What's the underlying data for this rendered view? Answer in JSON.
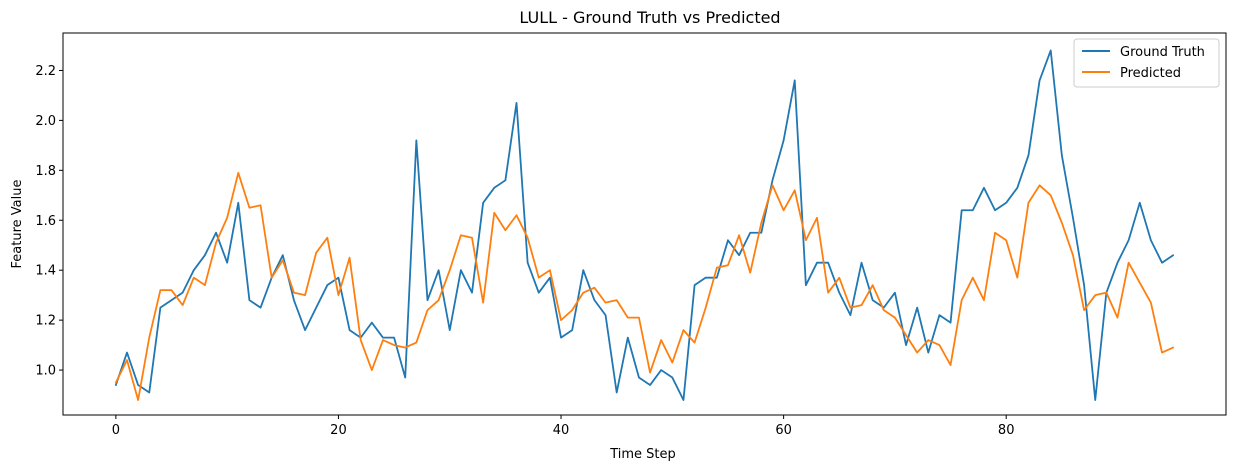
{
  "chart_data": {
    "type": "line",
    "title": "LULL - Ground Truth vs Predicted",
    "xlabel": "Time Step",
    "ylabel": "Feature Value",
    "xlim": [
      -4.75,
      99.75
    ],
    "ylim": [
      0.82,
      2.35
    ],
    "xticks": [
      0,
      20,
      40,
      60,
      80
    ],
    "yticks": [
      1.0,
      1.2,
      1.4,
      1.6,
      1.8,
      2.0,
      2.2
    ],
    "ytick_labels": [
      "1.0",
      "1.2",
      "1.4",
      "1.6",
      "1.8",
      "2.0",
      "2.2"
    ],
    "grid": false,
    "legend_position": "top-right",
    "x": [
      0,
      1,
      2,
      3,
      4,
      5,
      6,
      7,
      8,
      9,
      10,
      11,
      12,
      13,
      14,
      15,
      16,
      17,
      18,
      19,
      20,
      21,
      22,
      23,
      24,
      25,
      26,
      27,
      28,
      29,
      30,
      31,
      32,
      33,
      34,
      35,
      36,
      37,
      38,
      39,
      40,
      41,
      42,
      43,
      44,
      45,
      46,
      47,
      48,
      49,
      50,
      51,
      52,
      53,
      54,
      55,
      56,
      57,
      58,
      59,
      60,
      61,
      62,
      63,
      64,
      65,
      66,
      67,
      68,
      69,
      70,
      71,
      72,
      73,
      74,
      75,
      76,
      77,
      78,
      79,
      80,
      81,
      82,
      83,
      84,
      85,
      86,
      87,
      88,
      89,
      90,
      91,
      92,
      93,
      94,
      95
    ],
    "series": [
      {
        "name": "Ground Truth",
        "color": "#1f77b4",
        "values": [
          0.94,
          1.07,
          0.94,
          0.91,
          1.25,
          1.28,
          1.31,
          1.4,
          1.46,
          1.55,
          1.43,
          1.67,
          1.28,
          1.25,
          1.37,
          1.46,
          1.28,
          1.16,
          1.25,
          1.34,
          1.37,
          1.16,
          1.13,
          1.19,
          1.13,
          1.13,
          0.97,
          1.92,
          1.28,
          1.4,
          1.16,
          1.4,
          1.31,
          1.67,
          1.73,
          1.76,
          2.07,
          1.43,
          1.31,
          1.37,
          1.13,
          1.16,
          1.4,
          1.28,
          1.22,
          0.91,
          1.13,
          0.97,
          0.94,
          1.0,
          0.97,
          0.88,
          1.34,
          1.37,
          1.37,
          1.52,
          1.46,
          1.55,
          1.55,
          1.76,
          1.92,
          2.16,
          1.34,
          1.43,
          1.43,
          1.31,
          1.22,
          1.43,
          1.28,
          1.25,
          1.31,
          1.1,
          1.25,
          1.07,
          1.22,
          1.19,
          1.64,
          1.64,
          1.73,
          1.64,
          1.67,
          1.73,
          1.86,
          2.16,
          2.28,
          1.86,
          1.61,
          1.34,
          0.88,
          1.31,
          1.43,
          1.52,
          1.67,
          1.52,
          1.43,
          1.46
        ]
      },
      {
        "name": "Predicted",
        "color": "#ff7f0e",
        "values": [
          0.95,
          1.04,
          0.88,
          1.13,
          1.32,
          1.32,
          1.26,
          1.37,
          1.34,
          1.51,
          1.61,
          1.79,
          1.65,
          1.66,
          1.37,
          1.44,
          1.31,
          1.3,
          1.47,
          1.53,
          1.3,
          1.45,
          1.12,
          1.0,
          1.12,
          1.1,
          1.09,
          1.11,
          1.24,
          1.28,
          1.4,
          1.54,
          1.53,
          1.27,
          1.63,
          1.56,
          1.62,
          1.53,
          1.37,
          1.4,
          1.2,
          1.24,
          1.31,
          1.33,
          1.27,
          1.28,
          1.21,
          1.21,
          0.99,
          1.12,
          1.03,
          1.16,
          1.11,
          1.25,
          1.41,
          1.42,
          1.54,
          1.39,
          1.59,
          1.74,
          1.64,
          1.72,
          1.52,
          1.61,
          1.31,
          1.37,
          1.25,
          1.26,
          1.34,
          1.24,
          1.21,
          1.14,
          1.07,
          1.12,
          1.1,
          1.02,
          1.28,
          1.37,
          1.28,
          1.55,
          1.52,
          1.37,
          1.67,
          1.74,
          1.7,
          1.59,
          1.46,
          1.24,
          1.3,
          1.31,
          1.21,
          1.43,
          1.35,
          1.27,
          1.07,
          1.09
        ]
      }
    ]
  }
}
